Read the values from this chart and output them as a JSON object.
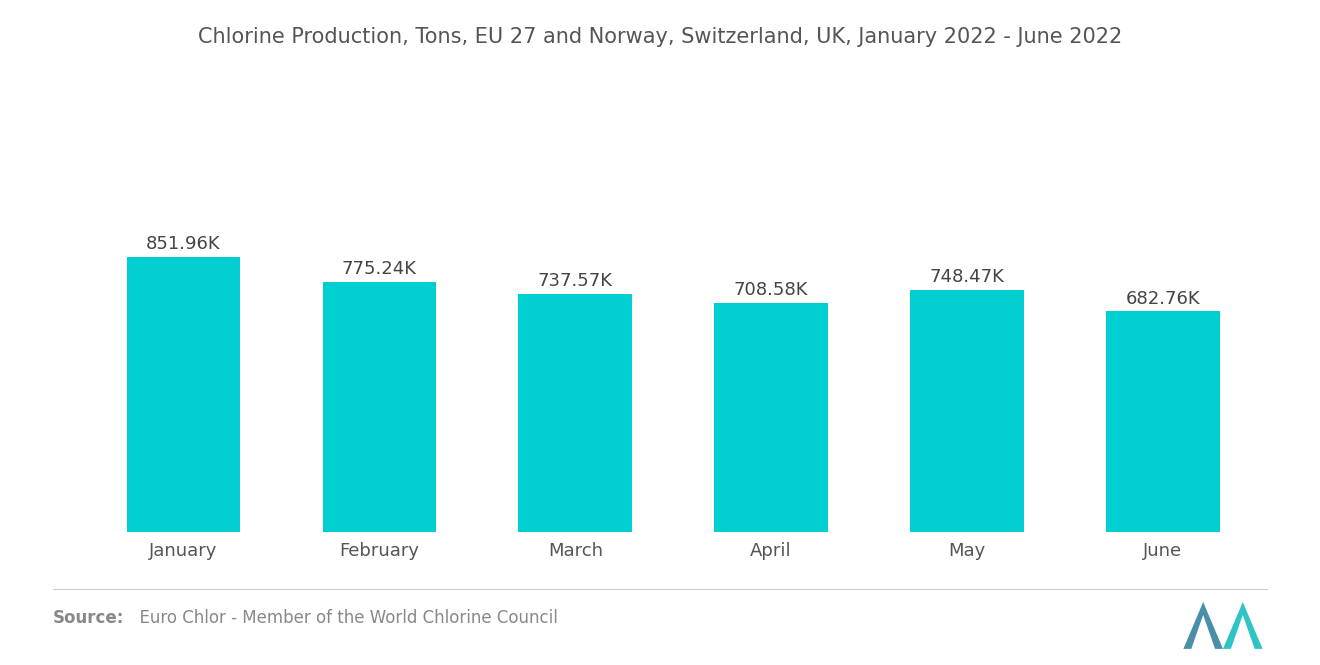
{
  "title": "Chlorine Production, Tons, EU 27 and Norway, Switzerland, UK, January 2022 - June 2022",
  "categories": [
    "January",
    "February",
    "March",
    "April",
    "May",
    "June"
  ],
  "values": [
    851960,
    775240,
    737570,
    708580,
    748470,
    682760
  ],
  "labels": [
    "851.96K",
    "775.24K",
    "737.57K",
    "708.58K",
    "748.47K",
    "682.76K"
  ],
  "bar_color": "#00CED1",
  "background_color": "#ffffff",
  "title_color": "#555555",
  "label_color": "#444444",
  "tick_color": "#555555",
  "source_bold": "Source:",
  "source_text": "  Euro Chlor - Member of the World Chlorine Council",
  "source_color": "#888888",
  "title_fontsize": 15,
  "label_fontsize": 13,
  "tick_fontsize": 13,
  "source_fontsize": 12,
  "ylim_min": 0,
  "ylim_max": 1400000
}
